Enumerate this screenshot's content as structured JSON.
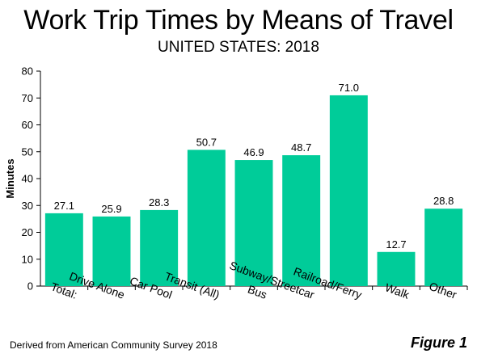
{
  "chart_data": {
    "type": "bar",
    "title": "Work Trip Times by Means of Travel",
    "subtitle": "UNITED STATES: 2018",
    "xlabel": "",
    "ylabel": "Minutes",
    "ylim": [
      0,
      80
    ],
    "yticks": [
      0,
      10,
      20,
      30,
      40,
      50,
      60,
      70,
      80
    ],
    "categories": [
      "Total:",
      "Drive Alone",
      "Car Pool",
      "Transit (All)",
      "Bus",
      "Subway/Streetcar",
      "Railroad/Ferry",
      "Walk",
      "Other"
    ],
    "values": [
      27.1,
      25.9,
      28.3,
      50.7,
      46.9,
      48.7,
      71.0,
      12.7,
      28.8
    ],
    "data_labels": [
      "27.1",
      "25.9",
      "28.3",
      "50.7",
      "46.9",
      "48.7",
      "71.0",
      "12.7",
      "28.8"
    ],
    "bar_color": "#00cc99",
    "grid": false,
    "legend": false
  },
  "footer": {
    "source": "Derived from American Community Survey 2018",
    "figure_label": "Figure 1"
  }
}
